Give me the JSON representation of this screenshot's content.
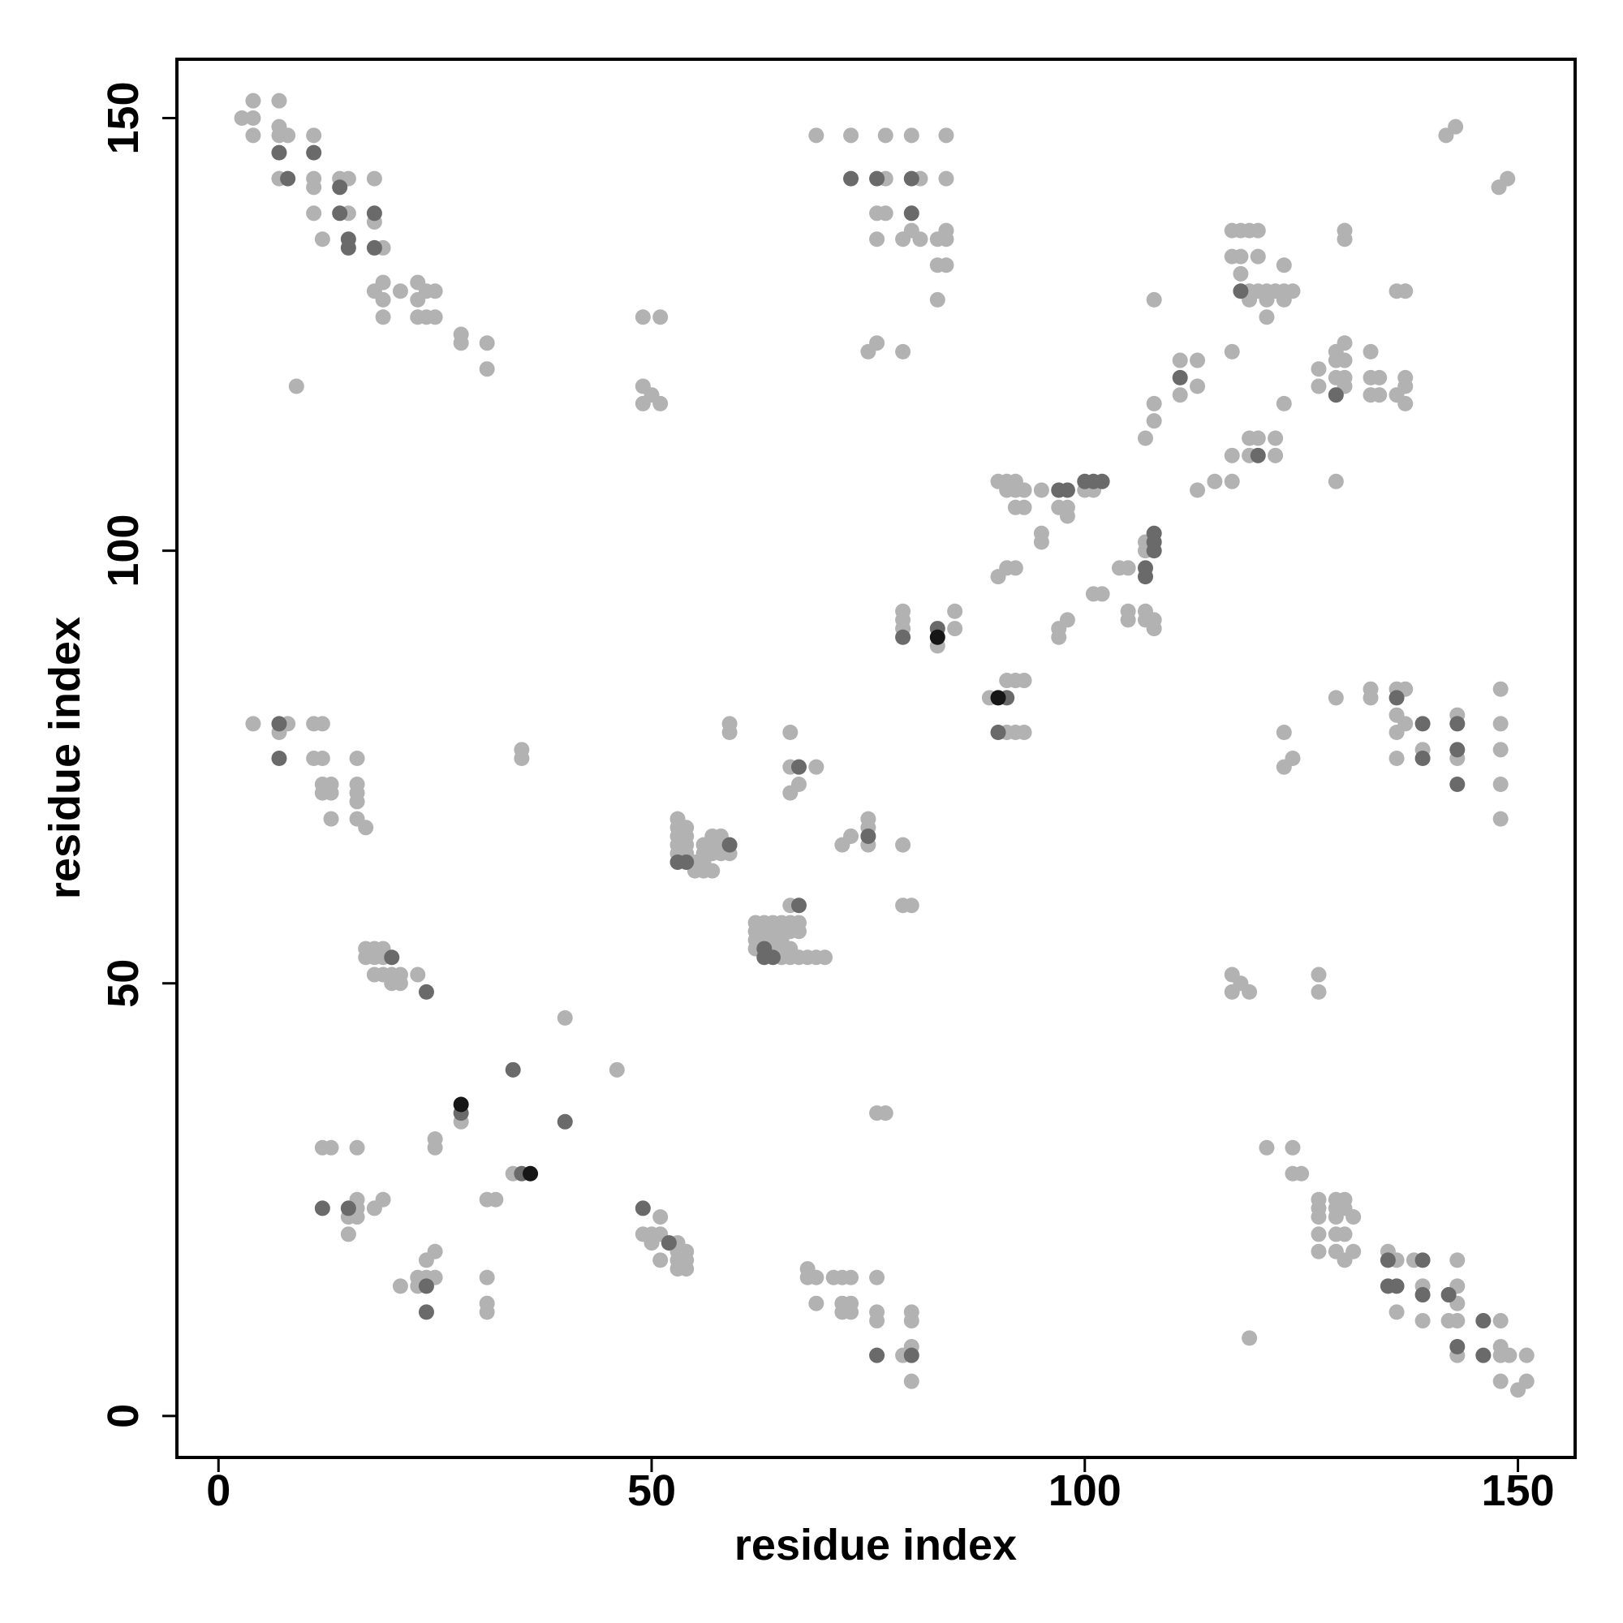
{
  "chart_data": {
    "type": "scatter",
    "xlabel": "residue index",
    "ylabel": "residue index",
    "xlim": [
      -4.8,
      156.6
    ],
    "ylim": [
      -4.8,
      156.8
    ],
    "xticks": [
      0,
      50,
      100,
      150
    ],
    "yticks": [
      0,
      50,
      100,
      150
    ],
    "series": [
      {
        "color": "#b2b2b2",
        "x": [
          2.7,
          4,
          4,
          4,
          7,
          7,
          7,
          7,
          8,
          11,
          11,
          11,
          11,
          12,
          14,
          15,
          15,
          18,
          18,
          19,
          18,
          19,
          19,
          19,
          21,
          23,
          23,
          23,
          24,
          25,
          24,
          25,
          28,
          28,
          31,
          31,
          9,
          49,
          51,
          49,
          50,
          49,
          51,
          69,
          73,
          77,
          80,
          84,
          77,
          81,
          84,
          76,
          77,
          76,
          79,
          80,
          81,
          83,
          84,
          84,
          83,
          84,
          83,
          76,
          75,
          79,
          141.7,
          142.8,
          147.8,
          148.8,
          117,
          118,
          119,
          120,
          117,
          118,
          120,
          118,
          123,
          119,
          120,
          121,
          122,
          123,
          124,
          119,
          121,
          123,
          121,
          117,
          130,
          130,
          136,
          137,
          108,
          111,
          113,
          111,
          113,
          108,
          108,
          107,
          123,
          127,
          127,
          129,
          130,
          129,
          130,
          129,
          130,
          130,
          133,
          133,
          134,
          133,
          134,
          137,
          137,
          137,
          136,
          117,
          119,
          119,
          120,
          122,
          122,
          113,
          115,
          117,
          129,
          90,
          91,
          92,
          91,
          92,
          93,
          95,
          92,
          93,
          97,
          98,
          98,
          100,
          101,
          95,
          95,
          107,
          107,
          90,
          91,
          92,
          104,
          105,
          101,
          102,
          105,
          105,
          107,
          107,
          108,
          108,
          98,
          97,
          97,
          79,
          79,
          79,
          83,
          85,
          85,
          89,
          91,
          92,
          93,
          91,
          92,
          93,
          129,
          133,
          133,
          136,
          137,
          136,
          137,
          136,
          136,
          139,
          143,
          143,
          148,
          148,
          148,
          148,
          148,
          123,
          124,
          123,
          4,
          8,
          7,
          11,
          12,
          11,
          12,
          12,
          13,
          12,
          13,
          13,
          16,
          16,
          16,
          16,
          16,
          17,
          35,
          35,
          17,
          18,
          19,
          17,
          18,
          19,
          18,
          19,
          20,
          21,
          20,
          21,
          23,
          59,
          59,
          66,
          66,
          69,
          67,
          66,
          75,
          75,
          75,
          73,
          72,
          79,
          79,
          80,
          53,
          53,
          53,
          53,
          53,
          54,
          54,
          54,
          54,
          55,
          55,
          56,
          56,
          56,
          56,
          57,
          57,
          57,
          57,
          58,
          58,
          58,
          59,
          66,
          62,
          63,
          64,
          65,
          66,
          67,
          62,
          63,
          64,
          65,
          66,
          67,
          62,
          63,
          64,
          65,
          62,
          64,
          65,
          66,
          65,
          66,
          67,
          68,
          69,
          70,
          117,
          118,
          117,
          119,
          127,
          127,
          40,
          46,
          28,
          76,
          77,
          25,
          25,
          12,
          13,
          16,
          34,
          31,
          32,
          16,
          16,
          15,
          16,
          19,
          18,
          15,
          51,
          49,
          50,
          51,
          50,
          53,
          51,
          53,
          54,
          53,
          54,
          53,
          54,
          25,
          24,
          23,
          24,
          25,
          23,
          21,
          31,
          31,
          31,
          68,
          68,
          69,
          71,
          72,
          73,
          76,
          69,
          72,
          73,
          72,
          73,
          76,
          76,
          80,
          80,
          79,
          80,
          80,
          121,
          124,
          124,
          125,
          127,
          127,
          127,
          129,
          130,
          129,
          130,
          129,
          131,
          127,
          129,
          130,
          127,
          129,
          130,
          131,
          135,
          136,
          138,
          143,
          139,
          136,
          139,
          143,
          143,
          142,
          143,
          148,
          143,
          148,
          148,
          149,
          151,
          148,
          150,
          151,
          119
        ],
        "values": [
          150,
          152,
          150,
          148,
          152,
          149,
          148,
          143,
          148,
          148,
          143,
          142,
          139,
          136,
          143,
          143,
          139,
          143,
          138,
          135,
          130,
          131,
          129,
          127,
          130,
          131,
          129,
          127,
          130,
          130,
          127,
          127,
          125,
          124,
          124,
          121,
          119,
          127,
          127,
          119,
          118,
          117,
          117,
          148,
          148,
          148,
          148,
          148,
          143,
          143,
          143,
          139,
          139,
          136,
          136,
          137,
          136,
          136,
          137,
          136,
          133,
          133,
          129,
          124,
          123,
          123,
          148,
          149,
          142,
          143,
          137,
          137,
          137,
          137,
          134,
          134,
          134,
          132,
          133,
          130,
          130,
          130,
          130,
          130,
          130,
          129,
          129,
          129,
          127,
          123,
          137,
          136,
          130,
          130,
          129,
          122,
          122,
          118,
          119,
          117,
          115,
          113,
          117,
          121,
          119,
          123,
          124,
          122,
          122,
          120,
          120,
          119,
          123,
          120,
          120,
          118,
          118,
          120,
          119,
          117,
          118,
          111,
          111,
          113,
          113,
          113,
          111,
          107,
          108,
          108,
          108,
          108,
          108,
          108,
          107,
          107,
          107,
          107,
          105,
          105,
          105,
          105,
          104,
          107,
          107,
          102,
          101,
          101,
          100,
          97,
          98,
          98,
          98,
          98,
          95,
          95,
          93,
          92,
          93,
          92,
          92,
          91,
          92,
          91,
          90,
          93,
          92,
          91,
          89,
          93,
          91,
          83,
          85,
          85,
          85,
          79,
          79,
          79,
          83,
          84,
          83,
          84,
          84,
          81,
          80,
          79,
          76,
          77,
          81,
          76,
          84,
          80,
          77,
          73,
          69,
          79,
          76,
          75,
          80,
          80,
          79,
          80,
          80,
          76,
          76,
          73,
          73,
          72,
          72,
          69,
          76,
          73,
          72,
          71,
          69,
          68,
          77,
          76,
          54,
          54,
          54,
          53,
          53,
          53,
          51,
          51,
          51,
          51,
          50,
          50,
          51,
          80,
          79,
          79,
          75,
          75,
          73,
          72,
          69,
          68,
          66,
          67,
          66,
          66,
          59,
          59,
          69,
          68,
          67,
          66,
          65,
          68,
          67,
          66,
          65,
          64,
          63,
          66,
          65,
          64,
          63,
          67,
          66,
          65,
          63,
          67,
          66,
          65,
          65,
          59,
          57,
          57,
          57,
          57,
          57,
          57,
          56,
          56,
          56,
          56,
          56,
          56,
          55,
          55,
          55,
          55,
          54,
          54,
          54,
          54,
          53,
          53,
          53,
          53,
          53,
          53,
          51,
          50,
          49,
          49,
          51,
          49,
          46,
          40,
          34,
          35,
          35,
          32,
          31,
          31,
          31,
          31,
          28,
          25,
          25,
          25,
          24,
          23,
          23,
          25,
          24,
          21,
          23,
          21,
          21,
          21,
          20,
          20,
          18,
          19,
          19,
          18,
          18,
          17,
          17,
          19,
          18,
          16,
          16,
          16,
          15,
          15,
          16,
          13,
          12,
          17,
          16,
          16,
          16,
          16,
          16,
          16,
          13,
          13,
          13,
          12,
          12,
          12,
          11,
          12,
          11,
          7,
          8,
          4,
          31,
          31,
          28,
          28,
          25,
          24,
          23,
          25,
          25,
          24,
          24,
          23,
          23,
          21,
          21,
          21,
          19,
          19,
          18,
          19,
          19,
          18,
          18,
          18,
          15,
          12,
          11,
          15,
          13,
          11,
          11,
          11,
          7,
          8,
          7,
          7,
          7,
          4,
          3,
          4,
          9
        ]
      },
      {
        "color": "#6a6a6a",
        "x": [
          7,
          8,
          11,
          14,
          14,
          15,
          15,
          18,
          18,
          73,
          76,
          80,
          80,
          118,
          111,
          129,
          120,
          97,
          98,
          100,
          101,
          102,
          108,
          108,
          108,
          107,
          107,
          79,
          83,
          91,
          90,
          136,
          139,
          139,
          143,
          143,
          143,
          7,
          7,
          20,
          24,
          67,
          75,
          53,
          54,
          59,
          67,
          63,
          63,
          64,
          34,
          28,
          40,
          35,
          12,
          15,
          49,
          52,
          24,
          24,
          76,
          80,
          135,
          139,
          135,
          136,
          139,
          142,
          146,
          143,
          146
        ],
        "values": [
          146,
          143,
          146,
          142,
          139,
          136,
          135,
          139,
          135,
          143,
          143,
          143,
          139,
          130,
          120,
          118,
          111,
          107,
          107,
          108,
          108,
          108,
          102,
          101,
          100,
          98,
          97,
          90,
          91,
          83,
          79,
          83,
          80,
          76,
          80,
          77,
          73,
          80,
          76,
          53,
          49,
          75,
          67,
          64,
          64,
          66,
          59,
          54,
          53,
          53,
          40,
          35,
          34,
          28,
          24,
          24,
          24,
          20,
          15,
          12,
          7,
          7,
          18,
          18,
          15,
          15,
          14,
          14,
          11,
          8,
          7
        ]
      },
      {
        "color": "#161616",
        "x": [
          83,
          90,
          28,
          36
        ],
        "values": [
          90,
          83,
          36,
          28
        ]
      }
    ]
  }
}
